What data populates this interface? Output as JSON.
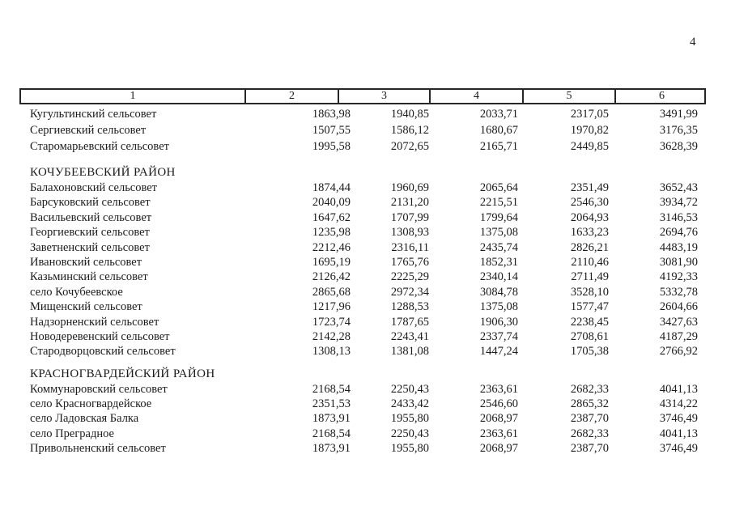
{
  "page": {
    "number": "4"
  },
  "table": {
    "header_columns": [
      "1",
      "2",
      "3",
      "4",
      "5",
      "6"
    ],
    "sections": [
      {
        "title": "",
        "rows": [
          {
            "name": "Кугультинский сельсовет",
            "values": [
              "1863,98",
              "1940,85",
              "2033,71",
              "2317,05",
              "3491,99"
            ]
          },
          {
            "name": "Сергиевский сельсовет",
            "values": [
              "1507,55",
              "1586,12",
              "1680,67",
              "1970,82",
              "3176,35"
            ]
          },
          {
            "name": "Старомарьевский сельсовет",
            "values": [
              "1995,58",
              "2072,65",
              "2165,71",
              "2449,85",
              "3628,39"
            ]
          }
        ]
      },
      {
        "title": "КОЧУБЕЕВСКИЙ РАЙОН",
        "rows": [
          {
            "name": "Балахоновский сельсовет",
            "values": [
              "1874,44",
              "1960,69",
              "2065,64",
              "2351,49",
              "3652,43"
            ]
          },
          {
            "name": "Барсуковский сельсовет",
            "values": [
              "2040,09",
              "2131,20",
              "2215,51",
              "2546,30",
              "3934,72"
            ]
          },
          {
            "name": "Васильевский сельсовет",
            "values": [
              "1647,62",
              "1707,99",
              "1799,64",
              "2064,93",
              "3146,53"
            ]
          },
          {
            "name": "Георгиевский сельсовет",
            "values": [
              "1235,98",
              "1308,93",
              "1375,08",
              "1633,23",
              "2694,76"
            ]
          },
          {
            "name": "Заветненский сельсовет",
            "values": [
              "2212,46",
              "2316,11",
              "2435,74",
              "2826,21",
              "4483,19"
            ]
          },
          {
            "name": "Ивановский сельсовет",
            "values": [
              "1695,19",
              "1765,76",
              "1852,31",
              "2110,46",
              "3081,90"
            ]
          },
          {
            "name": "Казьминский сельсовет",
            "values": [
              "2126,42",
              "2225,29",
              "2340,14",
              "2711,49",
              "4192,33"
            ]
          },
          {
            "name": "село Кочубеевское",
            "values": [
              "2865,68",
              "2972,34",
              "3084,78",
              "3528,10",
              "5332,78"
            ]
          },
          {
            "name": "Мищенский сельсовет",
            "values": [
              "1217,96",
              "1288,53",
              "1375,08",
              "1577,47",
              "2604,66"
            ]
          },
          {
            "name": "Надзорненский сельсовет",
            "values": [
              "1723,74",
              "1787,65",
              "1906,30",
              "2238,45",
              "3427,63"
            ]
          },
          {
            "name": "Новодеревенский сельсовет",
            "values": [
              "2142,28",
              "2243,41",
              "2337,74",
              "2708,61",
              "4187,29"
            ]
          },
          {
            "name": "Стародворцовский сельсовет",
            "values": [
              "1308,13",
              "1381,08",
              "1447,24",
              "1705,38",
              "2766,92"
            ]
          }
        ]
      },
      {
        "title": "КРАСНОГВАРДЕЙСКИЙ РАЙОН",
        "rows": [
          {
            "name": "Коммунаровский сельсовет",
            "values": [
              "2168,54",
              "2250,43",
              "2363,61",
              "2682,33",
              "4041,13"
            ]
          },
          {
            "name": "село Красногвардейское",
            "values": [
              "2351,53",
              "2433,42",
              "2546,60",
              "2865,32",
              "4314,22"
            ]
          },
          {
            "name": "село Ладовская Балка",
            "values": [
              "1873,91",
              "1955,80",
              "2068,97",
              "2387,70",
              "3746,49"
            ]
          },
          {
            "name": "село Преградное",
            "values": [
              "2168,54",
              "2250,43",
              "2363,61",
              "2682,33",
              "4041,13"
            ]
          },
          {
            "name": "Привольненский сельсовет",
            "values": [
              "1873,91",
              "1955,80",
              "2068,97",
              "2387,70",
              "3746,49"
            ]
          }
        ]
      }
    ]
  }
}
